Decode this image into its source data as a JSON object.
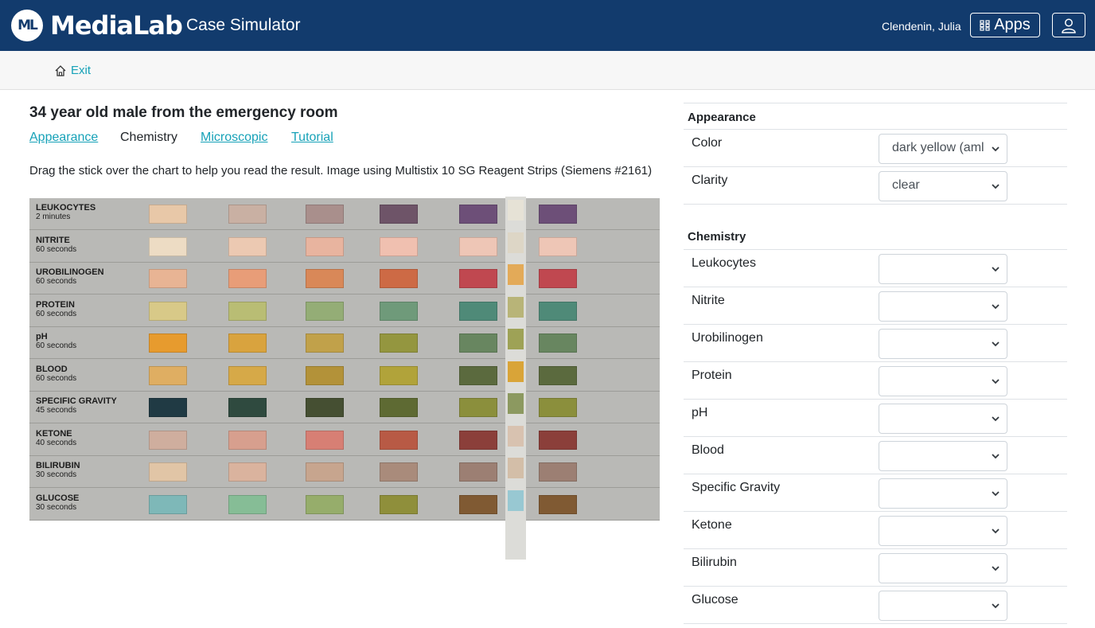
{
  "navbar": {
    "logo_text": "ML",
    "brand": "MediaLab",
    "product": "Case Simulator",
    "user": "Clendenin, Julia",
    "apps_label": "Apps"
  },
  "subnav": {
    "exit_label": "Exit"
  },
  "case": {
    "title": "34 year old male from the emergency room",
    "tabs": [
      {
        "label": "Appearance",
        "active": false
      },
      {
        "label": "Chemistry",
        "active": true
      },
      {
        "label": "Microscopic",
        "active": false
      },
      {
        "label": "Tutorial",
        "active": false
      }
    ],
    "instructions": "Drag the stick over the chart to help you read the result. Image using Multistix 10 SG Reagent Strips (Siemens #2161)"
  },
  "chart": {
    "rows": [
      {
        "name": "LEUKOCYTES",
        "time": "2 minutes"
      },
      {
        "name": "NITRITE",
        "time": "60 seconds"
      },
      {
        "name": "UROBILINOGEN",
        "time": "60 seconds"
      },
      {
        "name": "PROTEIN",
        "time": "60 seconds"
      },
      {
        "name": "pH",
        "time": "60 seconds"
      },
      {
        "name": "BLOOD",
        "time": "60 seconds"
      },
      {
        "name": "SPECIFIC GRAVITY",
        "time": "45 seconds"
      },
      {
        "name": "KETONE",
        "time": "40 seconds"
      },
      {
        "name": "BILIRUBIN",
        "time": "30 seconds"
      },
      {
        "name": "GLUCOSE",
        "time": "30 seconds"
      }
    ]
  },
  "appearance": {
    "heading": "Appearance",
    "fields": [
      {
        "label": "Color",
        "value": "dark yellow (aml"
      },
      {
        "label": "Clarity",
        "value": "clear"
      }
    ]
  },
  "chemistry": {
    "heading": "Chemistry",
    "fields": [
      {
        "label": "Leukocytes",
        "value": ""
      },
      {
        "label": "Nitrite",
        "value": ""
      },
      {
        "label": "Urobilinogen",
        "value": ""
      },
      {
        "label": "Protein",
        "value": ""
      },
      {
        "label": "pH",
        "value": ""
      },
      {
        "label": "Blood",
        "value": ""
      },
      {
        "label": "Specific Gravity",
        "value": ""
      },
      {
        "label": "Ketone",
        "value": ""
      },
      {
        "label": "Bilirubin",
        "value": ""
      },
      {
        "label": "Glucose",
        "value": ""
      }
    ]
  },
  "colors": {
    "navbar": "#123b6d",
    "link": "#17a2b8"
  }
}
